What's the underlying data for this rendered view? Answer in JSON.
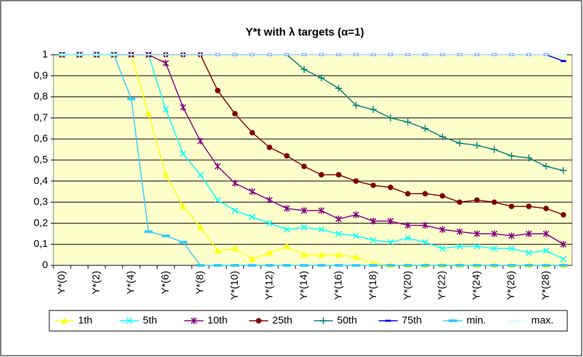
{
  "chart_data": {
    "type": "line",
    "title": "Y*t with λ targets (α=1)",
    "categories": [
      "Y*(0)",
      null,
      "Y*(2)",
      null,
      "Y*(4)",
      null,
      "Y*(6)",
      null,
      "Y*(8)",
      null,
      "Y*(10)",
      null,
      "Y*(12)",
      null,
      "Y*(14)",
      null,
      "Y*(16)",
      null,
      "Y*(18)",
      null,
      "Y*(20)",
      null,
      "Y*(22)",
      null,
      "Y*(24)",
      null,
      "Y*(26)",
      null,
      "Y*(28)",
      null
    ],
    "ylim": [
      0,
      1
    ],
    "yticks": [
      0,
      {
        "value": 0.1,
        "label": "0,1"
      },
      {
        "value": 0.2,
        "label": "0,2"
      },
      {
        "value": 0.3,
        "label": "0,3"
      },
      {
        "value": 0.4,
        "label": "0,4"
      },
      {
        "value": 0.5,
        "label": "0,5"
      },
      {
        "value": 0.6,
        "label": "0,6"
      },
      {
        "value": 0.7,
        "label": "0,7"
      },
      {
        "value": 0.8,
        "label": "0,8"
      },
      {
        "value": 0.9,
        "label": "0,9"
      },
      1
    ],
    "grid": true,
    "background": "#ffffcc",
    "legend": "bottom",
    "series": [
      {
        "name": "1th",
        "color": "#ffff00",
        "marker": "triangle",
        "values": [
          1,
          1,
          1,
          1,
          1,
          0.72,
          0.43,
          0.28,
          0.18,
          0.07,
          0.08,
          0.03,
          0.06,
          0.09,
          0.05,
          0.05,
          0.05,
          0.04,
          0.01,
          0,
          0,
          0,
          0,
          0,
          0,
          0,
          0,
          0,
          0,
          0
        ]
      },
      {
        "name": "5th",
        "color": "#00ffff",
        "marker": "x",
        "values": [
          1,
          1,
          1,
          1,
          1,
          1,
          0.74,
          0.53,
          0.43,
          0.31,
          0.26,
          0.23,
          0.2,
          0.17,
          0.18,
          0.17,
          0.15,
          0.14,
          0.12,
          0.11,
          0.13,
          0.11,
          0.08,
          0.09,
          0.09,
          0.08,
          0.08,
          0.06,
          0.07,
          0.03
        ]
      },
      {
        "name": "10th",
        "color": "#800080",
        "marker": "star",
        "values": [
          1,
          1,
          1,
          1,
          1,
          1,
          0.96,
          0.75,
          0.59,
          0.47,
          0.39,
          0.35,
          0.31,
          0.27,
          0.26,
          0.26,
          0.22,
          0.24,
          0.21,
          0.21,
          0.19,
          0.19,
          0.17,
          0.16,
          0.15,
          0.15,
          0.14,
          0.15,
          0.15,
          0.1
        ]
      },
      {
        "name": "25th",
        "color": "#800000",
        "marker": "circle",
        "values": [
          1,
          1,
          1,
          1,
          1,
          1,
          1,
          1,
          1,
          0.83,
          0.72,
          0.63,
          0.56,
          0.52,
          0.47,
          0.43,
          0.43,
          0.4,
          0.38,
          0.37,
          0.34,
          0.34,
          0.33,
          0.3,
          0.31,
          0.3,
          0.28,
          0.28,
          0.27,
          0.24
        ]
      },
      {
        "name": "50th",
        "color": "#008080",
        "marker": "plus",
        "values": [
          1,
          1,
          1,
          1,
          1,
          1,
          1,
          1,
          1,
          1,
          1,
          1,
          1,
          1,
          0.93,
          0.89,
          0.84,
          0.76,
          0.74,
          0.7,
          0.68,
          0.65,
          0.61,
          0.58,
          0.57,
          0.55,
          0.52,
          0.51,
          0.47,
          0.45
        ]
      },
      {
        "name": "75th",
        "color": "#0000ff",
        "marker": "dash",
        "values": [
          1,
          1,
          1,
          1,
          1,
          1,
          1,
          1,
          1,
          1,
          1,
          1,
          1,
          1,
          1,
          1,
          1,
          1,
          1,
          1,
          1,
          1,
          1,
          1,
          1,
          1,
          1,
          1,
          1,
          0.97
        ]
      },
      {
        "name": "min.",
        "color": "#33ccff",
        "marker": "bar",
        "values": [
          1,
          1,
          1,
          1,
          0.79,
          0.16,
          0.14,
          0.11,
          0,
          0,
          0,
          0,
          0,
          0,
          0,
          0,
          0,
          0,
          0,
          0,
          0,
          0,
          0,
          0,
          0,
          0,
          0,
          0,
          0,
          0
        ]
      },
      {
        "name": "max.",
        "color": "#ccffff",
        "marker": "plus",
        "values": [
          1,
          1,
          1,
          1,
          1,
          1,
          1,
          1,
          1,
          1,
          1,
          1,
          1,
          1,
          1,
          1,
          1,
          1,
          1,
          1,
          1,
          1,
          1,
          1,
          1,
          1,
          1,
          1,
          1,
          1
        ]
      }
    ]
  }
}
